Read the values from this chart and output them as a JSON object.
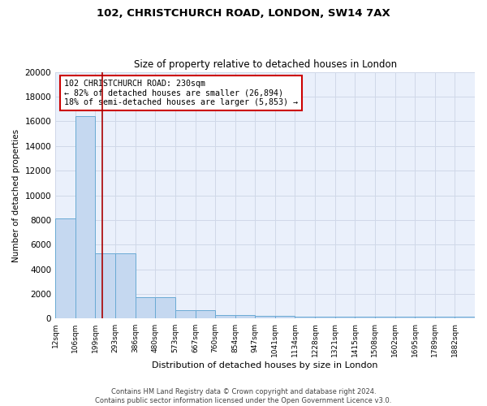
{
  "title1": "102, CHRISTCHURCH ROAD, LONDON, SW14 7AX",
  "title2": "Size of property relative to detached houses in London",
  "xlabel": "Distribution of detached houses by size in London",
  "ylabel": "Number of detached properties",
  "bin_labels": [
    "12sqm",
    "106sqm",
    "199sqm",
    "293sqm",
    "386sqm",
    "480sqm",
    "573sqm",
    "667sqm",
    "760sqm",
    "854sqm",
    "947sqm",
    "1041sqm",
    "1134sqm",
    "1228sqm",
    "1321sqm",
    "1415sqm",
    "1508sqm",
    "1602sqm",
    "1695sqm",
    "1789sqm",
    "1882sqm"
  ],
  "bin_edges": [
    12,
    106,
    199,
    293,
    386,
    480,
    573,
    667,
    760,
    854,
    947,
    1041,
    1134,
    1228,
    1321,
    1415,
    1508,
    1602,
    1695,
    1789,
    1882,
    1976
  ],
  "bar_values": [
    8100,
    16400,
    5300,
    5300,
    1750,
    1750,
    680,
    680,
    310,
    310,
    230,
    230,
    170,
    170,
    170,
    170,
    170,
    170,
    170,
    170,
    170
  ],
  "property_line_x": 230,
  "bar_color": "#c5d8f0",
  "bar_edge_color": "#6aaad4",
  "line_color": "#aa0000",
  "bg_color": "#eaf0fb",
  "grid_color": "#d0d8e8",
  "annotation_text": "102 CHRISTCHURCH ROAD: 230sqm\n← 82% of detached houses are smaller (26,894)\n18% of semi-detached houses are larger (5,853) →",
  "annotation_box_color": "#ffffff",
  "annotation_border_color": "#cc0000",
  "footer_text": "Contains HM Land Registry data © Crown copyright and database right 2024.\nContains public sector information licensed under the Open Government Licence v3.0.",
  "ylim": [
    0,
    20000
  ],
  "yticks": [
    0,
    2000,
    4000,
    6000,
    8000,
    10000,
    12000,
    14000,
    16000,
    18000,
    20000
  ],
  "fig_bg": "#ffffff"
}
